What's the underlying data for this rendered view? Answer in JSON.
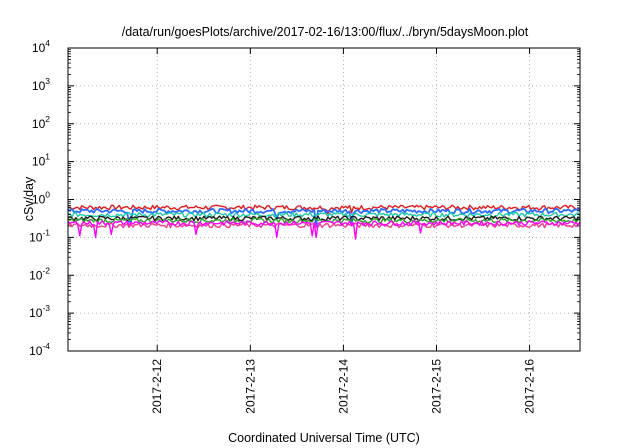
{
  "chart_data": {
    "type": "line",
    "title": "/data/run/goesPlots/archive/2017-02-16/13:00/flux/../bryn/5daysMoon.plot",
    "xlabel": "Coordinated Universal Time (UTC)",
    "ylabel": "cSv/day",
    "yscale": "log",
    "ylim": [
      0.0001,
      10000
    ],
    "yticks": [
      {
        "base": "10",
        "exp": "-4",
        "value": 0.0001
      },
      {
        "base": "10",
        "exp": "-3",
        "value": 0.001
      },
      {
        "base": "10",
        "exp": "-2",
        "value": 0.01
      },
      {
        "base": "10",
        "exp": "-1",
        "value": 0.1
      },
      {
        "base": "10",
        "exp": "0",
        "value": 1
      },
      {
        "base": "10",
        "exp": "1",
        "value": 10
      },
      {
        "base": "10",
        "exp": "2",
        "value": 100
      },
      {
        "base": "10",
        "exp": "3",
        "value": 1000
      },
      {
        "base": "10",
        "exp": "4",
        "value": 10000
      }
    ],
    "xlim": [
      "2017-02-11T01:00",
      "2017-02-16T13:00"
    ],
    "xticks": [
      {
        "label": "2017-2-12",
        "value": "2017-02-12T00:00"
      },
      {
        "label": "2017-2-13",
        "value": "2017-02-13T00:00"
      },
      {
        "label": "2017-2-14",
        "value": "2017-02-14T00:00"
      },
      {
        "label": "2017-2-15",
        "value": "2017-02-15T00:00"
      },
      {
        "label": "2017-2-16",
        "value": "2017-02-16T00:00"
      }
    ],
    "grid": true,
    "legend": "none",
    "series": [
      {
        "color": "#e41a1c",
        "level": 0.62,
        "dips": [
          {
            "at": "2017-02-13T20:00",
            "value": 0.42
          },
          {
            "at": "2017-02-14T02:00",
            "value": 0.45
          }
        ]
      },
      {
        "color": "#2b6cff",
        "level": 0.5,
        "dips": [
          {
            "at": "2017-02-11T17:00",
            "value": 0.26
          },
          {
            "at": "2017-02-13T07:00",
            "value": 0.3
          },
          {
            "at": "2017-02-13T17:00",
            "value": 0.2
          },
          {
            "at": "2017-02-14T02:00",
            "value": 0.22
          }
        ]
      },
      {
        "color": "#1fc9a8",
        "level": 0.4,
        "dips": []
      },
      {
        "color": "#1a1a1a",
        "level": 0.32,
        "dips": []
      },
      {
        "color": "#2ca02c",
        "level": 0.28,
        "dips": []
      },
      {
        "color": "#f03c8a",
        "level": 0.21,
        "dips": []
      },
      {
        "color": "#ff00ff",
        "level": 0.24,
        "dips": [
          {
            "at": "2017-02-11T04:00",
            "value": 0.11
          },
          {
            "at": "2017-02-11T08:00",
            "value": 0.1
          },
          {
            "at": "2017-02-11T12:00",
            "value": 0.12
          },
          {
            "at": "2017-02-12T10:00",
            "value": 0.12
          },
          {
            "at": "2017-02-13T07:00",
            "value": 0.1
          },
          {
            "at": "2017-02-13T16:00",
            "value": 0.11
          },
          {
            "at": "2017-02-13T17:00",
            "value": 0.1
          },
          {
            "at": "2017-02-14T03:00",
            "value": 0.09
          },
          {
            "at": "2017-02-14T20:00",
            "value": 0.13
          }
        ]
      }
    ]
  }
}
